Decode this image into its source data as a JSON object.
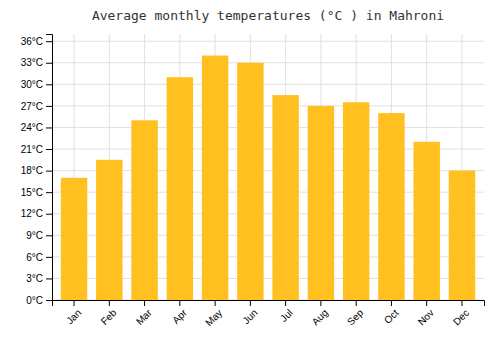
{
  "chart_data": {
    "type": "bar",
    "title": "Average monthly temperatures (°C ) in Mahroni",
    "categories": [
      "Jan",
      "Feb",
      "Mar",
      "Apr",
      "May",
      "Jun",
      "Jul",
      "Aug",
      "Sep",
      "Oct",
      "Nov",
      "Dec"
    ],
    "values": [
      17.0,
      19.5,
      25.0,
      31.0,
      34.0,
      33.0,
      28.5,
      27.0,
      27.5,
      26.0,
      22.0,
      18.0
    ],
    "color": "#FFC020",
    "ylim": [
      0,
      37
    ],
    "yticks": [
      {
        "value": 0,
        "label": "0°C"
      },
      {
        "value": 3,
        "label": "3°C"
      },
      {
        "value": 6,
        "label": "6°C"
      },
      {
        "value": 9,
        "label": "9°C"
      },
      {
        "value": 12,
        "label": "12°C"
      },
      {
        "value": 15,
        "label": "15°C"
      },
      {
        "value": 18,
        "label": "18°C"
      },
      {
        "value": 21,
        "label": "21°C"
      },
      {
        "value": 24,
        "label": "24°C"
      },
      {
        "value": 27,
        "label": "27°C"
      },
      {
        "value": 30,
        "label": "30°C"
      },
      {
        "value": 33,
        "label": "33°C"
      },
      {
        "value": 36,
        "label": "36°C"
      }
    ],
    "grid": true
  }
}
